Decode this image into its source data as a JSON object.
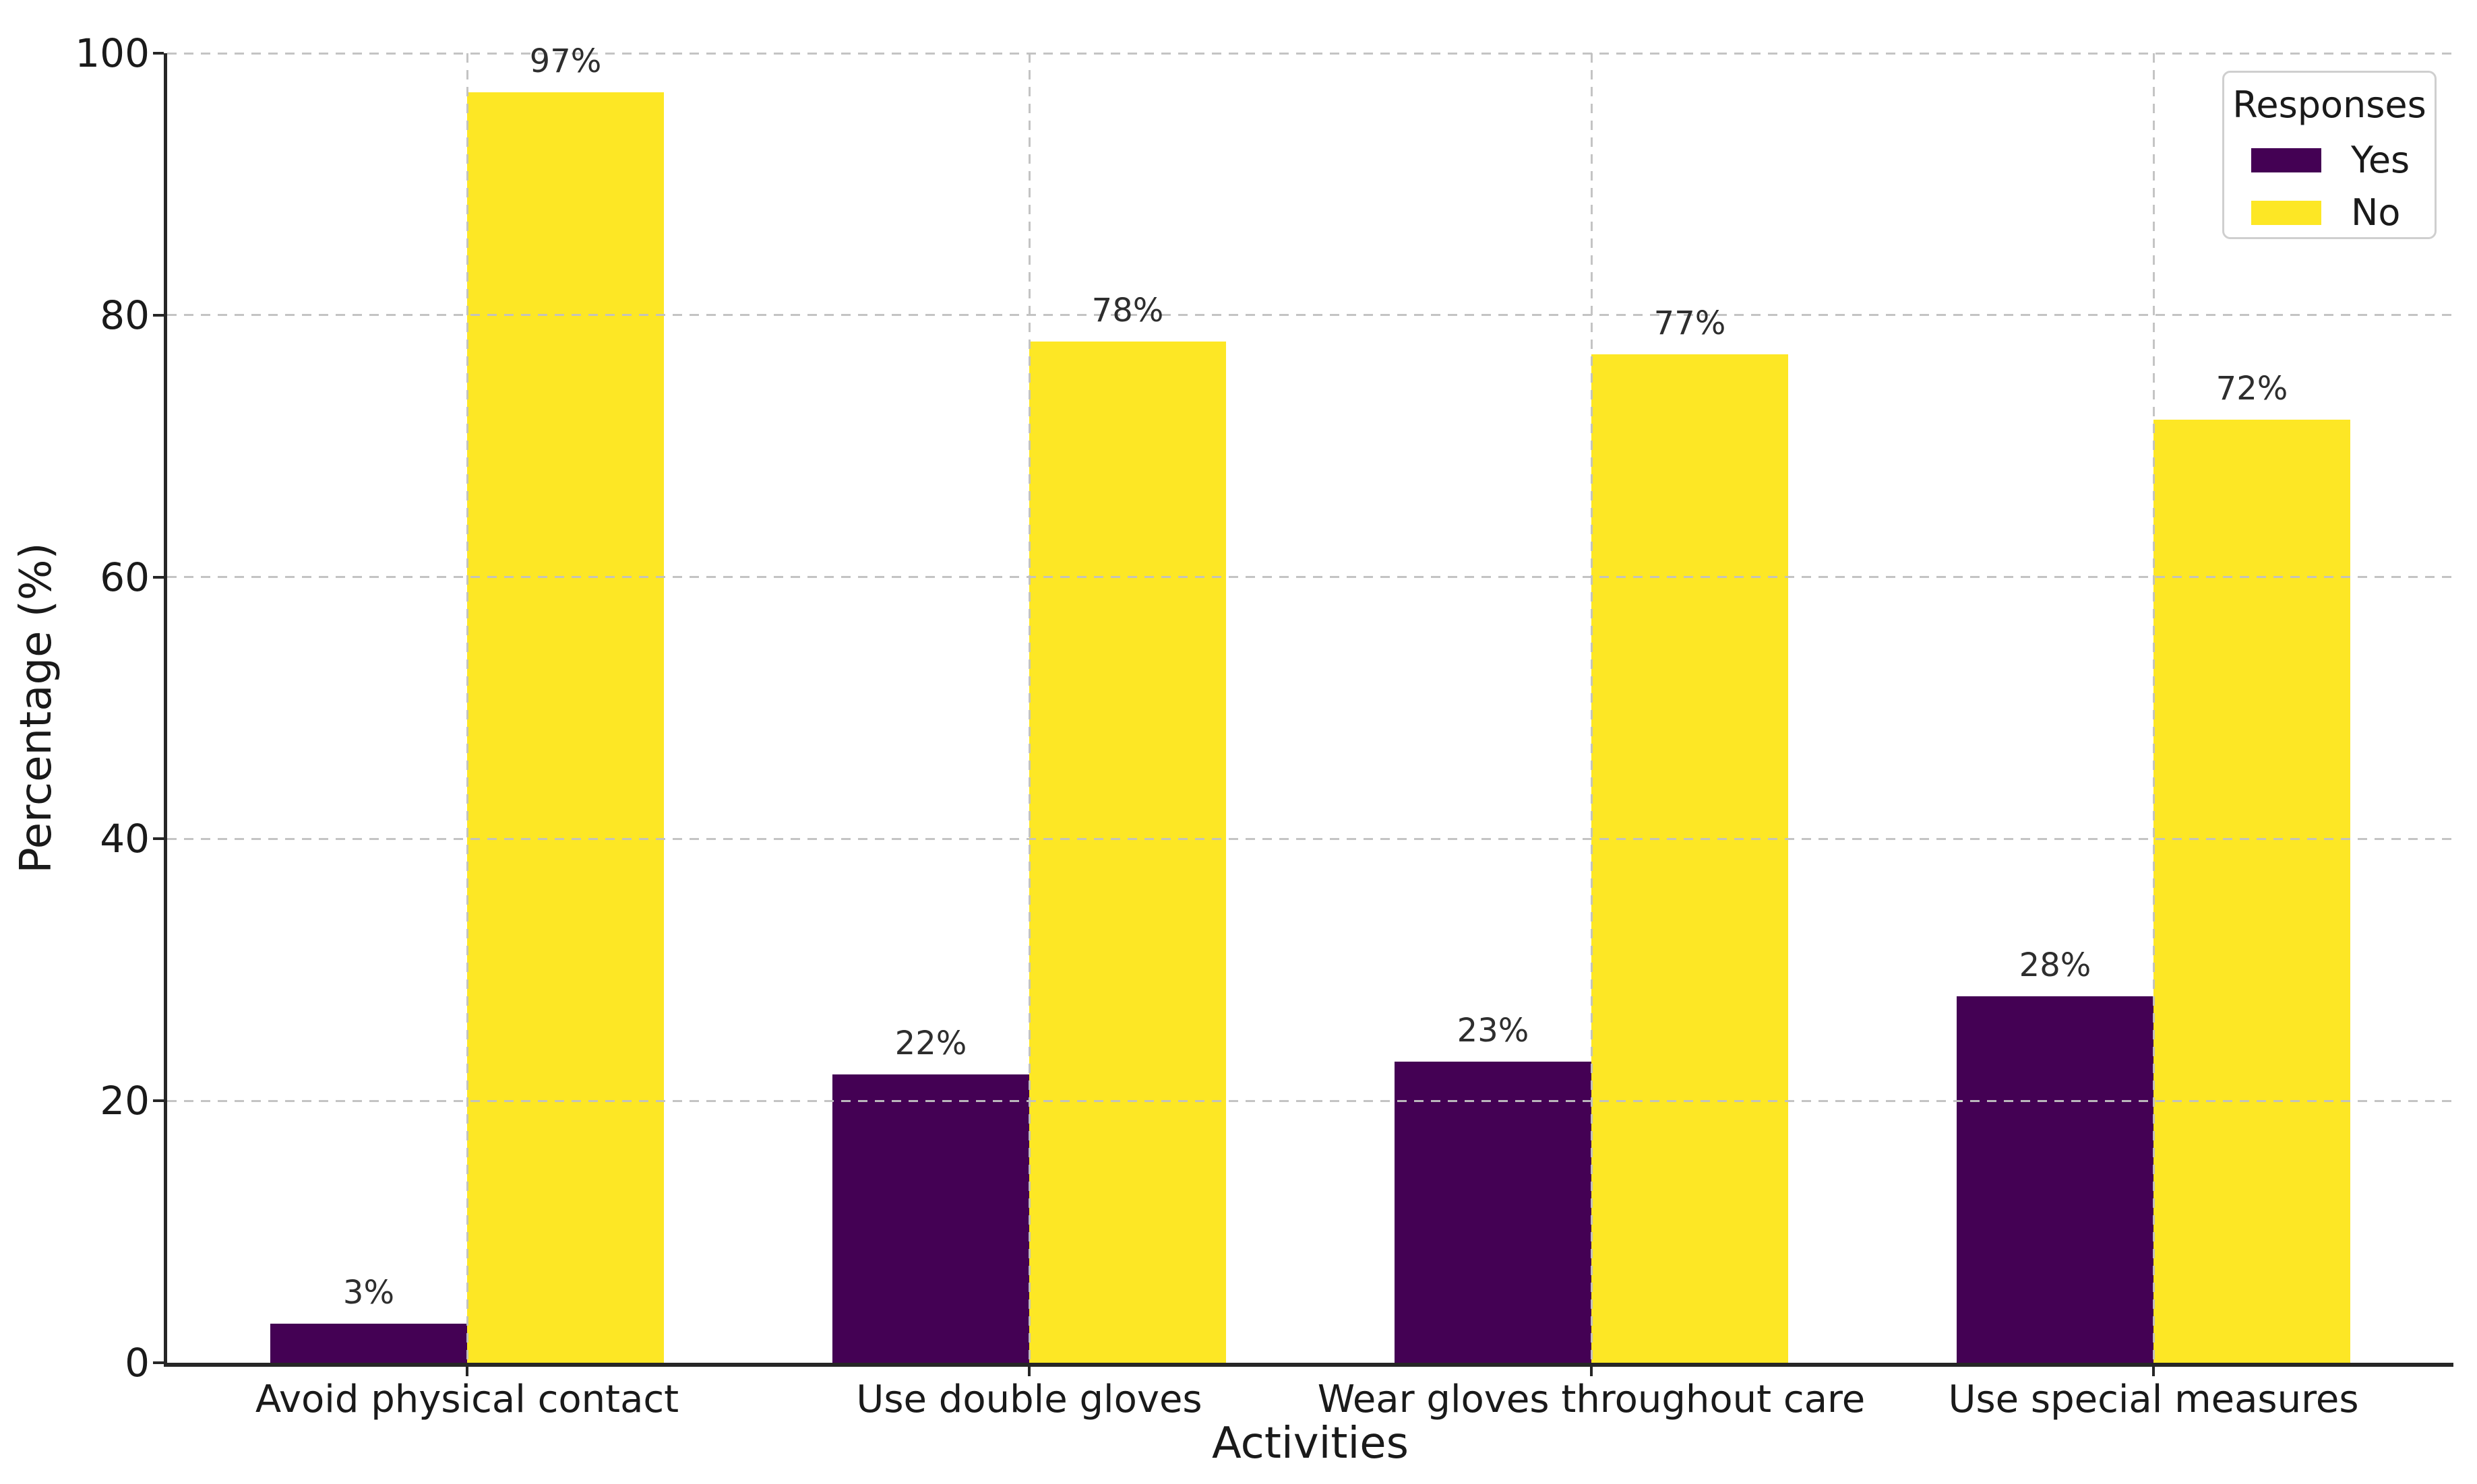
{
  "chart_data": {
    "type": "bar",
    "title": "",
    "xlabel": "Activities",
    "ylabel": "Percentage (%)",
    "categories": [
      "Avoid physical contact",
      "Use double gloves",
      "Wear gloves throughout care",
      "Use special measures"
    ],
    "series": [
      {
        "name": "Yes",
        "color": "#440154",
        "values": [
          3,
          22,
          23,
          28
        ]
      },
      {
        "name": "No",
        "color": "#FDE725",
        "values": [
          97,
          78,
          77,
          72
        ]
      }
    ],
    "value_suffix": "%",
    "ylim": [
      0,
      100
    ],
    "yticks": [
      0,
      20,
      40,
      60,
      80,
      100
    ],
    "grid": {
      "style": "dashed",
      "color": "#c1c1c1",
      "drawn_over_bars": true
    },
    "legend": {
      "title": "Responses",
      "position": "upper-right",
      "entries": [
        "Yes",
        "No"
      ]
    },
    "axis_color": "#262626",
    "background": "#ffffff"
  }
}
